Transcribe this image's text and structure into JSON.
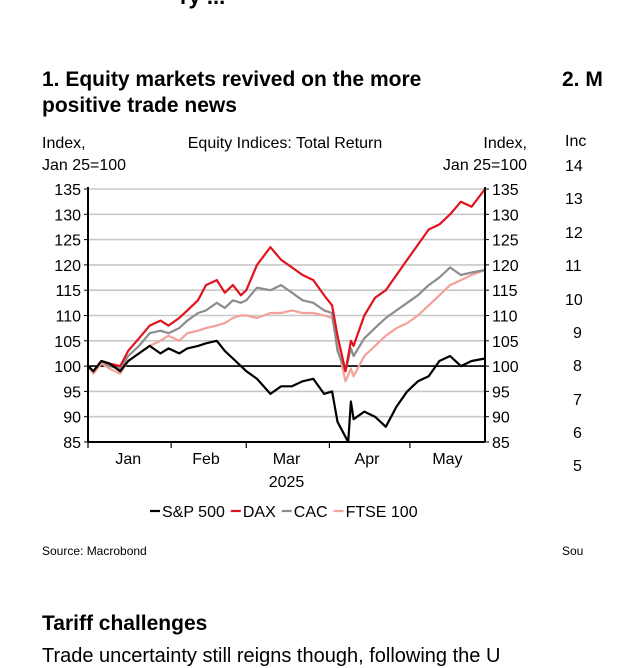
{
  "page": {
    "top_cut_title": "ry ... ",
    "source_label": "Source: Macrobond",
    "section_title": "Tariff challenges",
    "body_text_fragment": "Trade uncertainty still reigns though, following the U"
  },
  "left_chart": {
    "heading": "1. Equity markets revived on the more positive trade news"
  },
  "right_chart": {
    "heading": "2. M",
    "ylabel_fragment": "Inc",
    "tick_fragments": [
      "14",
      "13",
      "12",
      "11",
      "10",
      "9",
      "8",
      "7",
      "6",
      "5"
    ],
    "source_fragment": "Sou"
  },
  "chart_data": {
    "type": "line",
    "title": "Equity Indices: Total Return",
    "ylabel_left": [
      "Index,",
      "Jan 25=100"
    ],
    "ylabel_right": [
      "Index,",
      "Jan 25=100"
    ],
    "xlabel": "2025",
    "ylim": [
      85,
      135
    ],
    "yticks": [
      85,
      90,
      95,
      100,
      105,
      110,
      115,
      120,
      125,
      130,
      135
    ],
    "x_tick_labels": [
      "Jan",
      "Feb",
      "Mar",
      "Apr",
      "May"
    ],
    "x_range": [
      "2025-01-01",
      "2025-05-29"
    ],
    "reference_line": 100,
    "grid": true,
    "legend_position": "bottom",
    "series": [
      {
        "name": "FTSE 100",
        "color": "#f4a19a",
        "points": [
          [
            "2025-01-01",
            100
          ],
          [
            "2025-01-03",
            98.5
          ],
          [
            "2025-01-06",
            100.5
          ],
          [
            "2025-01-09",
            99.5
          ],
          [
            "2025-01-13",
            98.5
          ],
          [
            "2025-01-16",
            101
          ],
          [
            "2025-01-20",
            102.5
          ],
          [
            "2025-01-24",
            104
          ],
          [
            "2025-01-28",
            105
          ],
          [
            "2025-01-31",
            106
          ],
          [
            "2025-02-04",
            105
          ],
          [
            "2025-02-07",
            106.5
          ],
          [
            "2025-02-11",
            107
          ],
          [
            "2025-02-14",
            107.5
          ],
          [
            "2025-02-18",
            108
          ],
          [
            "2025-02-21",
            108.5
          ],
          [
            "2025-02-24",
            109.5
          ],
          [
            "2025-02-27",
            110
          ],
          [
            "2025-03-01",
            110
          ],
          [
            "2025-03-05",
            109.5
          ],
          [
            "2025-03-10",
            110.5
          ],
          [
            "2025-03-14",
            110.5
          ],
          [
            "2025-03-18",
            111
          ],
          [
            "2025-03-22",
            110.5
          ],
          [
            "2025-03-26",
            110.5
          ],
          [
            "2025-03-30",
            110
          ],
          [
            "2025-04-02",
            109.5
          ],
          [
            "2025-04-04",
            104
          ],
          [
            "2025-04-07",
            97
          ],
          [
            "2025-04-09",
            99.5
          ],
          [
            "2025-04-10",
            98
          ],
          [
            "2025-04-14",
            102
          ],
          [
            "2025-04-18",
            104
          ],
          [
            "2025-04-22",
            106
          ],
          [
            "2025-04-26",
            107.5
          ],
          [
            "2025-04-30",
            108.5
          ],
          [
            "2025-05-04",
            110
          ],
          [
            "2025-05-08",
            112
          ],
          [
            "2025-05-12",
            114
          ],
          [
            "2025-05-16",
            116
          ],
          [
            "2025-05-20",
            117
          ],
          [
            "2025-05-24",
            118
          ],
          [
            "2025-05-29",
            119
          ]
        ]
      },
      {
        "name": "CAC",
        "color": "#8c8c8c",
        "points": [
          [
            "2025-01-01",
            100
          ],
          [
            "2025-01-03",
            99
          ],
          [
            "2025-01-06",
            101
          ],
          [
            "2025-01-09",
            100
          ],
          [
            "2025-01-13",
            99.5
          ],
          [
            "2025-01-16",
            102
          ],
          [
            "2025-01-20",
            104
          ],
          [
            "2025-01-24",
            106.5
          ],
          [
            "2025-01-28",
            107
          ],
          [
            "2025-01-31",
            106.5
          ],
          [
            "2025-02-04",
            107.5
          ],
          [
            "2025-02-07",
            109
          ],
          [
            "2025-02-11",
            110.5
          ],
          [
            "2025-02-14",
            111
          ],
          [
            "2025-02-18",
            112.5
          ],
          [
            "2025-02-21",
            111.5
          ],
          [
            "2025-02-24",
            113
          ],
          [
            "2025-02-27",
            112.5
          ],
          [
            "2025-03-01",
            113
          ],
          [
            "2025-03-05",
            115.5
          ],
          [
            "2025-03-10",
            115
          ],
          [
            "2025-03-14",
            116
          ],
          [
            "2025-03-18",
            114.5
          ],
          [
            "2025-03-22",
            113
          ],
          [
            "2025-03-26",
            112.5
          ],
          [
            "2025-03-30",
            111
          ],
          [
            "2025-04-02",
            110.5
          ],
          [
            "2025-04-04",
            103
          ],
          [
            "2025-04-07",
            99
          ],
          [
            "2025-04-09",
            103.5
          ],
          [
            "2025-04-10",
            102
          ],
          [
            "2025-04-14",
            105.5
          ],
          [
            "2025-04-18",
            107.5
          ],
          [
            "2025-04-22",
            109.5
          ],
          [
            "2025-04-26",
            111
          ],
          [
            "2025-04-30",
            112.5
          ],
          [
            "2025-05-04",
            114
          ],
          [
            "2025-05-08",
            116
          ],
          [
            "2025-05-12",
            117.5
          ],
          [
            "2025-05-16",
            119.5
          ],
          [
            "2025-05-20",
            118
          ],
          [
            "2025-05-24",
            118.5
          ],
          [
            "2025-05-29",
            119
          ]
        ]
      },
      {
        "name": "DAX",
        "color": "#e0141e",
        "points": [
          [
            "2025-01-01",
            100
          ],
          [
            "2025-01-03",
            99
          ],
          [
            "2025-01-06",
            101
          ],
          [
            "2025-01-09",
            100.5
          ],
          [
            "2025-01-13",
            100
          ],
          [
            "2025-01-16",
            103
          ],
          [
            "2025-01-20",
            105.5
          ],
          [
            "2025-01-24",
            108
          ],
          [
            "2025-01-28",
            109
          ],
          [
            "2025-01-31",
            108
          ],
          [
            "2025-02-04",
            109.5
          ],
          [
            "2025-02-07",
            111
          ],
          [
            "2025-02-11",
            113
          ],
          [
            "2025-02-14",
            116
          ],
          [
            "2025-02-18",
            117
          ],
          [
            "2025-02-21",
            114.5
          ],
          [
            "2025-02-24",
            116
          ],
          [
            "2025-02-27",
            114
          ],
          [
            "2025-03-01",
            115
          ],
          [
            "2025-03-05",
            120
          ],
          [
            "2025-03-10",
            123.5
          ],
          [
            "2025-03-14",
            121
          ],
          [
            "2025-03-18",
            119.5
          ],
          [
            "2025-03-22",
            118
          ],
          [
            "2025-03-26",
            117
          ],
          [
            "2025-03-30",
            114
          ],
          [
            "2025-04-02",
            112
          ],
          [
            "2025-04-04",
            106
          ],
          [
            "2025-04-07",
            99
          ],
          [
            "2025-04-09",
            105
          ],
          [
            "2025-04-10",
            104
          ],
          [
            "2025-04-14",
            110
          ],
          [
            "2025-04-18",
            113.5
          ],
          [
            "2025-04-22",
            115
          ],
          [
            "2025-04-26",
            118
          ],
          [
            "2025-04-30",
            121
          ],
          [
            "2025-05-04",
            124
          ],
          [
            "2025-05-08",
            127
          ],
          [
            "2025-05-12",
            128
          ],
          [
            "2025-05-16",
            130
          ],
          [
            "2025-05-20",
            132.5
          ],
          [
            "2025-05-24",
            131.5
          ],
          [
            "2025-05-29",
            135
          ]
        ]
      },
      {
        "name": "S&P 500",
        "color": "#000000",
        "points": [
          [
            "2025-01-01",
            100
          ],
          [
            "2025-01-03",
            99
          ],
          [
            "2025-01-06",
            101
          ],
          [
            "2025-01-09",
            100.5
          ],
          [
            "2025-01-13",
            99
          ],
          [
            "2025-01-16",
            101
          ],
          [
            "2025-01-20",
            102.5
          ],
          [
            "2025-01-24",
            104
          ],
          [
            "2025-01-28",
            102.5
          ],
          [
            "2025-01-31",
            103.5
          ],
          [
            "2025-02-04",
            102.5
          ],
          [
            "2025-02-07",
            103.5
          ],
          [
            "2025-02-11",
            104
          ],
          [
            "2025-02-14",
            104.5
          ],
          [
            "2025-02-18",
            105
          ],
          [
            "2025-02-21",
            103
          ],
          [
            "2025-02-24",
            101.5
          ],
          [
            "2025-02-27",
            100
          ],
          [
            "2025-03-01",
            99
          ],
          [
            "2025-03-05",
            97.5
          ],
          [
            "2025-03-10",
            94.5
          ],
          [
            "2025-03-14",
            96
          ],
          [
            "2025-03-18",
            96
          ],
          [
            "2025-03-22",
            97
          ],
          [
            "2025-03-26",
            97.5
          ],
          [
            "2025-03-30",
            94.5
          ],
          [
            "2025-04-02",
            95
          ],
          [
            "2025-04-04",
            89
          ],
          [
            "2025-04-07",
            86
          ],
          [
            "2025-04-08",
            85
          ],
          [
            "2025-04-09",
            93
          ],
          [
            "2025-04-10",
            89.5
          ],
          [
            "2025-04-14",
            91
          ],
          [
            "2025-04-18",
            90
          ],
          [
            "2025-04-22",
            88
          ],
          [
            "2025-04-26",
            92
          ],
          [
            "2025-04-30",
            95
          ],
          [
            "2025-05-04",
            97
          ],
          [
            "2025-05-08",
            98
          ],
          [
            "2025-05-12",
            101
          ],
          [
            "2025-05-16",
            102
          ],
          [
            "2025-05-20",
            100
          ],
          [
            "2025-05-24",
            101
          ],
          [
            "2025-05-29",
            101.5
          ]
        ]
      }
    ],
    "legend_order": [
      "S&P 500",
      "DAX",
      "CAC",
      "FTSE 100"
    ]
  }
}
